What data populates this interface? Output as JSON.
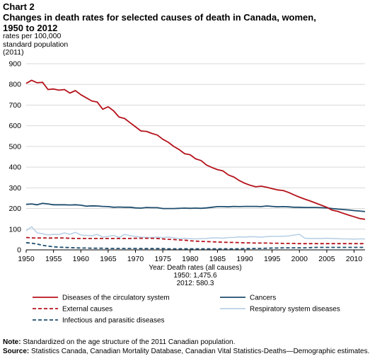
{
  "header": {
    "chart_label": "Chart 2",
    "title": "Changes in death rates for selected causes of death in Canada, women, 1950 to 2012"
  },
  "footer": {
    "note_label": "Note:",
    "note_text": "Standardized on the age structure of the 2011 Canadian population.",
    "source_label": "Source:",
    "source_text": "Statistics Canada, Canadian Mortality Database, Canadian Vital Statistics-Deaths—Demographic estimates."
  },
  "chart_data": {
    "type": "line",
    "ylabel_lines": [
      "rates per 100,000",
      "standard population",
      "(2011)"
    ],
    "xlabel_lines": [
      "Year: Death rates (all causes)",
      "1950: 1,475.6",
      "2012: 580.3"
    ],
    "xlim": [
      1950,
      2012
    ],
    "ylim": [
      0,
      900
    ],
    "x_ticks": [
      1950,
      1955,
      1960,
      1965,
      1970,
      1975,
      1980,
      1985,
      1990,
      1995,
      2000,
      2005,
      2010
    ],
    "y_ticks": [
      0,
      100,
      200,
      300,
      400,
      500,
      600,
      700,
      800,
      900
    ],
    "grid": "horizontal",
    "legend_position": "bottom",
    "x": [
      1950,
      1951,
      1952,
      1953,
      1954,
      1955,
      1956,
      1957,
      1958,
      1959,
      1960,
      1961,
      1962,
      1963,
      1964,
      1965,
      1966,
      1967,
      1968,
      1969,
      1970,
      1971,
      1972,
      1973,
      1974,
      1975,
      1976,
      1977,
      1978,
      1979,
      1980,
      1981,
      1982,
      1983,
      1984,
      1985,
      1986,
      1987,
      1988,
      1989,
      1990,
      1991,
      1992,
      1993,
      1994,
      1995,
      1996,
      1997,
      1998,
      1999,
      2000,
      2001,
      2002,
      2003,
      2004,
      2005,
      2006,
      2007,
      2008,
      2009,
      2010,
      2011,
      2012
    ],
    "series": [
      {
        "name": "Diseases of the circulatory system",
        "color": "#b5121b",
        "dash": "solid",
        "values": [
          805,
          820,
          808,
          810,
          775,
          778,
          772,
          775,
          758,
          770,
          750,
          735,
          720,
          715,
          680,
          692,
          672,
          642,
          635,
          615,
          595,
          575,
          573,
          563,
          555,
          535,
          520,
          500,
          485,
          465,
          460,
          440,
          432,
          410,
          398,
          388,
          382,
          362,
          352,
          335,
          322,
          312,
          305,
          308,
          303,
          296,
          290,
          287,
          278,
          266,
          255,
          245,
          236,
          226,
          216,
          206,
          192,
          186,
          177,
          168,
          160,
          152,
          148
        ]
      },
      {
        "name": "Cancers",
        "color": "#1f4e6e",
        "dash": "solid",
        "values": [
          220,
          222,
          218,
          225,
          222,
          218,
          218,
          218,
          217,
          218,
          216,
          211,
          213,
          212,
          210,
          209,
          206,
          207,
          206,
          206,
          203,
          202,
          205,
          204,
          204,
          200,
          200,
          200,
          201,
          202,
          201,
          202,
          201,
          203,
          206,
          209,
          209,
          208,
          210,
          209,
          210,
          210,
          210,
          209,
          212,
          210,
          208,
          209,
          208,
          206,
          206,
          205,
          205,
          205,
          204,
          203,
          200,
          197,
          195,
          193,
          190,
          188,
          185
        ]
      },
      {
        "name": "External causes",
        "color": "#b5121b",
        "dash": "dashed",
        "values": [
          60,
          58,
          57,
          58,
          57,
          57,
          58,
          57,
          56,
          55,
          55,
          55,
          55,
          55,
          55,
          55,
          55,
          55,
          55,
          55,
          56,
          56,
          56,
          56,
          55,
          53,
          51,
          50,
          48,
          47,
          44,
          42,
          41,
          40,
          39,
          38,
          37,
          36,
          36,
          35,
          34,
          34,
          33,
          33,
          33,
          32,
          32,
          31,
          31,
          31,
          30,
          30,
          30,
          30,
          30,
          30,
          30,
          30,
          30,
          30,
          30,
          30,
          30
        ]
      },
      {
        "name": "Respiratory system diseases",
        "color": "#b8d1e6",
        "dash": "solid",
        "values": [
          92,
          112,
          82,
          78,
          72,
          75,
          74,
          82,
          75,
          85,
          72,
          70,
          68,
          75,
          62,
          65,
          70,
          60,
          75,
          68,
          65,
          62,
          60,
          60,
          62,
          60,
          62,
          58,
          55,
          56,
          54,
          53,
          54,
          55,
          58,
          58,
          56,
          60,
          60,
          63,
          62,
          64,
          63,
          62,
          64,
          65,
          65,
          66,
          67,
          72,
          75,
          56,
          55,
          55,
          55,
          56,
          55,
          54,
          53,
          53,
          52,
          53,
          53
        ]
      },
      {
        "name": "Infectious and parasitic diseases",
        "color": "#1f4e6e",
        "dash": "dashed",
        "values": [
          35,
          32,
          28,
          22,
          18,
          15,
          13,
          12,
          11,
          10,
          9,
          9,
          8,
          8,
          8,
          7,
          7,
          7,
          7,
          7,
          7,
          6,
          6,
          6,
          6,
          6,
          5,
          5,
          5,
          5,
          5,
          5,
          5,
          5,
          5,
          5,
          5,
          5,
          5,
          5,
          6,
          6,
          7,
          7,
          8,
          9,
          9,
          10,
          10,
          10,
          10,
          10,
          11,
          12,
          12,
          12,
          12,
          12,
          12,
          12,
          12,
          12,
          12
        ]
      }
    ]
  }
}
